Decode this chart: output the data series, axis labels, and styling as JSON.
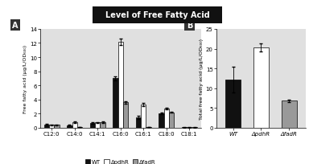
{
  "title": "Level of Free Fatty Acid",
  "title_bg": "#111111",
  "title_color": "white",
  "panel_A": {
    "categories": [
      "C12:0",
      "C14:0",
      "C14:1",
      "C16:0",
      "C16:1",
      "C18:0",
      "C18:1"
    ],
    "WT": [
      0.45,
      0.35,
      0.65,
      7.0,
      1.5,
      2.05,
      0.05
    ],
    "pdhR": [
      0.4,
      0.75,
      0.75,
      12.2,
      3.3,
      2.7,
      0.05
    ],
    "fadR": [
      0.4,
      0.1,
      0.8,
      3.6,
      0.1,
      2.2,
      0.05
    ],
    "WT_err": [
      0.07,
      0.07,
      0.08,
      0.3,
      0.22,
      0.1,
      0.01
    ],
    "pdhR_err": [
      0.07,
      0.12,
      0.08,
      0.45,
      0.22,
      0.15,
      0.01
    ],
    "fadR_err": [
      0.07,
      0.04,
      0.08,
      0.18,
      0.04,
      0.1,
      0.01
    ],
    "ylabel": "Free fatty acid (μg/L/OD₆₀₀)",
    "ylim": [
      0,
      14
    ],
    "yticks": [
      0,
      2,
      4,
      6,
      8,
      10,
      12,
      14
    ]
  },
  "panel_B": {
    "categories": [
      "WT",
      "ΔpdhR",
      "ΔfadR"
    ],
    "values": [
      12.2,
      20.3,
      6.8
    ],
    "errors": [
      3.2,
      1.0,
      0.35
    ],
    "ylabel": "Total free fatty acid (μg/L/OD₆₀₀)",
    "ylim": [
      0,
      25
    ],
    "yticks": [
      0,
      5,
      10,
      15,
      20,
      25
    ]
  },
  "colors": {
    "WT": "#111111",
    "pdhR": "#ffffff",
    "fadR": "#999999"
  },
  "legend_labels": [
    "WT",
    "ΔpdhR",
    "ΔfadR"
  ],
  "bar_width": 0.22,
  "bg_color": "#e0e0e0"
}
